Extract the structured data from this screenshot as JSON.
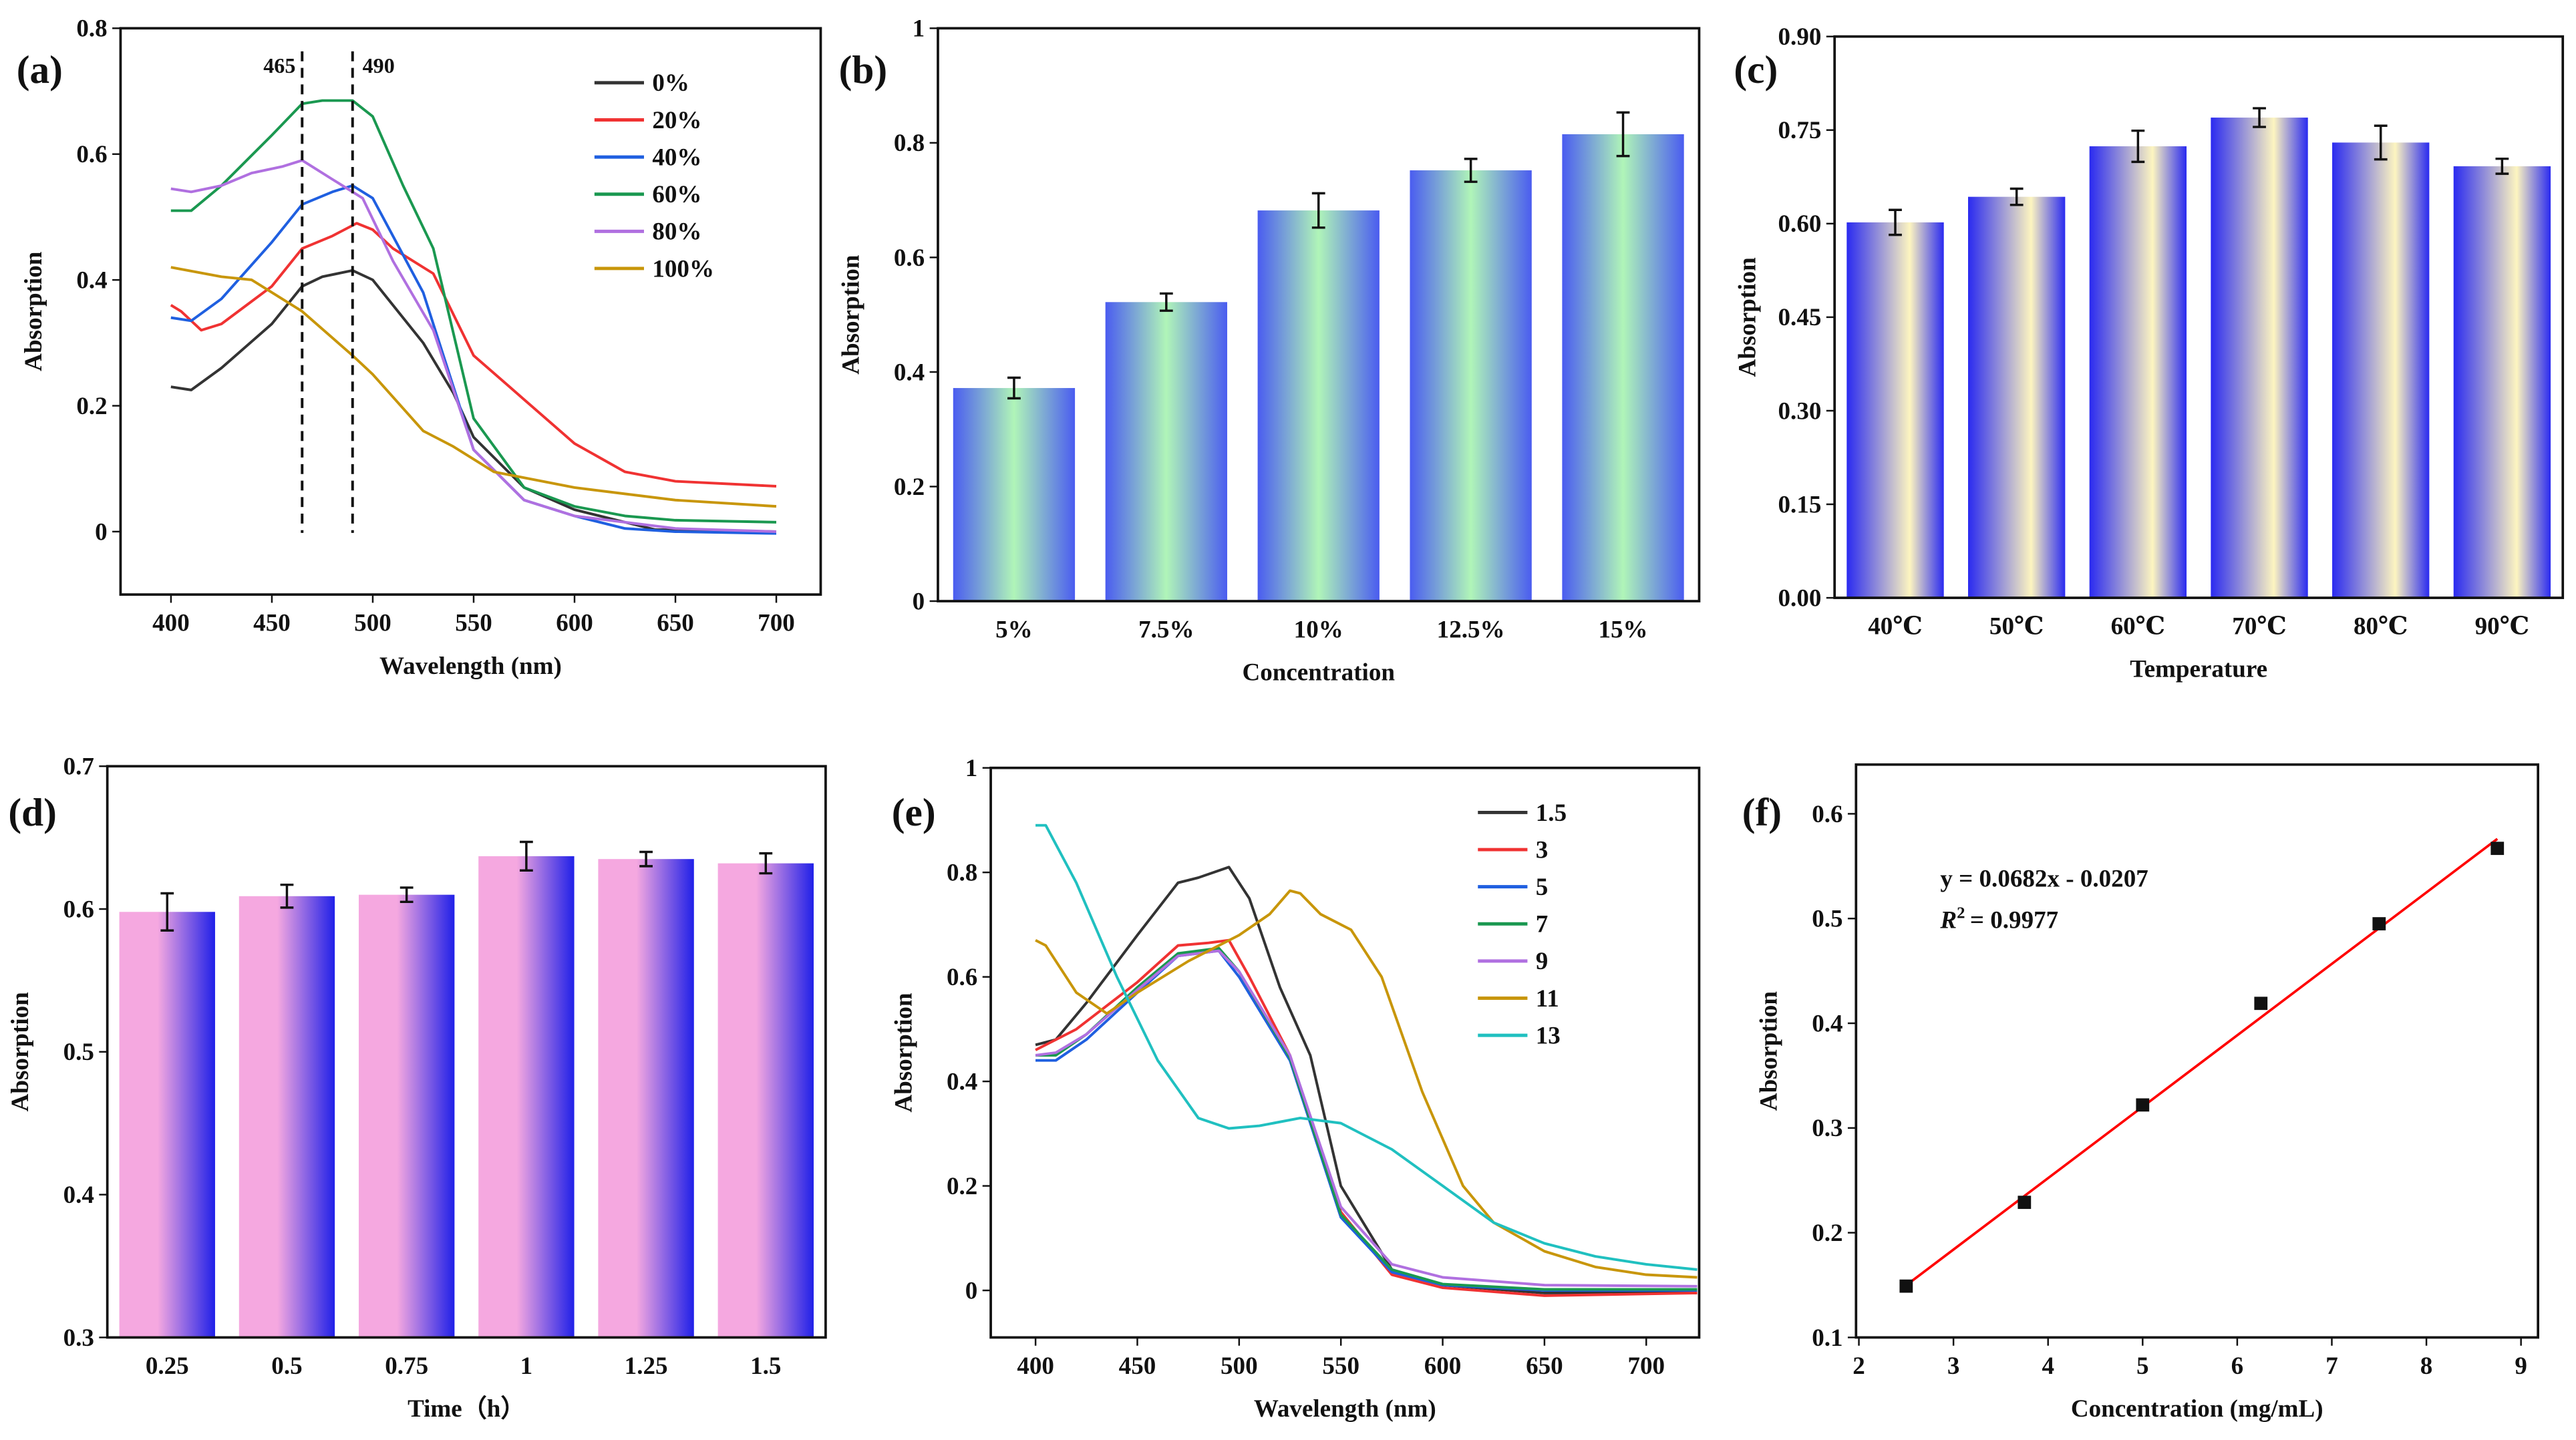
{
  "chart_data": [
    {
      "panel": "(a)",
      "type": "line",
      "xlabel": "Wavelength (nm)",
      "ylabel": "Absorption",
      "xlim": [
        375,
        722
      ],
      "ylim": [
        -0.1,
        0.8
      ],
      "xticks": [
        400,
        450,
        500,
        550,
        600,
        650,
        700
      ],
      "yticks": [
        0.0,
        0.2,
        0.4,
        0.6,
        0.8
      ],
      "legend_position": "top-right",
      "annotations": [
        {
          "text": "465",
          "x": 465
        },
        {
          "text": "490",
          "x": 490
        }
      ],
      "series": [
        {
          "name": "0%",
          "color": "#333333",
          "x": [
            400,
            410,
            425,
            450,
            465,
            475,
            490,
            500,
            525,
            540,
            550,
            575,
            600,
            625,
            640,
            700
          ],
          "y": [
            0.23,
            0.225,
            0.26,
            0.33,
            0.39,
            0.405,
            0.415,
            0.4,
            0.3,
            0.22,
            0.15,
            0.07,
            0.035,
            0.015,
            0.003,
            0.0
          ]
        },
        {
          "name": "20%",
          "color": "#f03232",
          "x": [
            400,
            405,
            415,
            425,
            450,
            465,
            480,
            492,
            500,
            510,
            530,
            550,
            575,
            600,
            625,
            650,
            700
          ],
          "y": [
            0.36,
            0.35,
            0.32,
            0.33,
            0.39,
            0.45,
            0.47,
            0.49,
            0.48,
            0.45,
            0.41,
            0.28,
            0.21,
            0.14,
            0.095,
            0.08,
            0.072
          ]
        },
        {
          "name": "40%",
          "color": "#1f5fe0",
          "x": [
            400,
            410,
            425,
            450,
            465,
            480,
            490,
            500,
            525,
            550,
            575,
            600,
            625,
            650,
            700
          ],
          "y": [
            0.34,
            0.335,
            0.37,
            0.46,
            0.52,
            0.54,
            0.55,
            0.53,
            0.38,
            0.13,
            0.05,
            0.025,
            0.005,
            0.0,
            -0.003
          ]
        },
        {
          "name": "60%",
          "color": "#1a9850",
          "x": [
            400,
            410,
            425,
            450,
            465,
            475,
            490,
            500,
            515,
            530,
            550,
            575,
            600,
            625,
            650,
            700
          ],
          "y": [
            0.51,
            0.51,
            0.55,
            0.63,
            0.68,
            0.685,
            0.685,
            0.66,
            0.55,
            0.45,
            0.18,
            0.07,
            0.04,
            0.025,
            0.018,
            0.015
          ]
        },
        {
          "name": "80%",
          "color": "#b070e0",
          "x": [
            400,
            410,
            425,
            440,
            455,
            465,
            480,
            495,
            510,
            530,
            550,
            575,
            600,
            650,
            700
          ],
          "y": [
            0.545,
            0.54,
            0.55,
            0.57,
            0.58,
            0.59,
            0.56,
            0.53,
            0.43,
            0.32,
            0.13,
            0.05,
            0.025,
            0.005,
            0.0
          ]
        },
        {
          "name": "100%",
          "color": "#c8960a",
          "x": [
            400,
            425,
            440,
            465,
            490,
            500,
            525,
            540,
            560,
            600,
            650,
            700
          ],
          "y": [
            0.42,
            0.405,
            0.4,
            0.35,
            0.28,
            0.25,
            0.16,
            0.135,
            0.095,
            0.07,
            0.05,
            0.04
          ]
        }
      ]
    },
    {
      "panel": "(b)",
      "type": "bar",
      "xlabel": "Concentration",
      "ylabel": "Absorption",
      "ylim": [
        0,
        1.0
      ],
      "yticks": [
        0.0,
        0.2,
        0.4,
        0.6,
        0.8,
        1.0
      ],
      "categories": [
        "5%",
        "7.5%",
        "10%",
        "12.5%",
        "15%"
      ],
      "values": [
        0.372,
        0.522,
        0.682,
        0.752,
        0.815
      ],
      "errors": [
        0.018,
        0.015,
        0.03,
        0.02,
        0.038
      ],
      "gradient": [
        "#4a5cf0",
        "#b0f5b8"
      ]
    },
    {
      "panel": "(c)",
      "type": "bar",
      "xlabel": "Temperature",
      "ylabel": "Absorption",
      "ylim": [
        0,
        0.9
      ],
      "yticks": [
        0.0,
        0.15,
        0.3,
        0.45,
        0.6,
        0.75,
        0.9
      ],
      "ytick_labels": [
        "0.00",
        "0.15",
        "0.30",
        "0.45",
        "0.60",
        "0.75",
        "0.90"
      ],
      "categories": [
        "40℃",
        "50℃",
        "60℃",
        "70℃",
        "80℃",
        "90℃"
      ],
      "values": [
        0.602,
        0.643,
        0.724,
        0.77,
        0.73,
        0.692
      ],
      "errors": [
        0.02,
        0.013,
        0.025,
        0.015,
        0.027,
        0.012
      ],
      "gradient": [
        "#2a2af0",
        "#fdf5c0"
      ]
    },
    {
      "panel": "(d)",
      "type": "bar",
      "xlabel": "Time（h）",
      "ylabel": "Absorption",
      "ylim": [
        0.3,
        0.7
      ],
      "yticks": [
        0.3,
        0.4,
        0.5,
        0.6,
        0.7
      ],
      "categories": [
        "0.25",
        "0.5",
        "0.75",
        "1",
        "1.25",
        "1.5"
      ],
      "values": [
        0.598,
        0.609,
        0.61,
        0.637,
        0.635,
        0.632
      ],
      "errors": [
        0.013,
        0.008,
        0.005,
        0.01,
        0.005,
        0.007
      ],
      "gradient": [
        "#2020e8",
        "#f5a8e0"
      ]
    },
    {
      "panel": "(e)",
      "type": "line",
      "xlabel": "Wavelength (nm)",
      "ylabel": "Absorption",
      "xlim": [
        378,
        726
      ],
      "ylim": [
        -0.09,
        1.0
      ],
      "xticks": [
        400,
        450,
        500,
        550,
        600,
        650,
        700
      ],
      "yticks": [
        0.0,
        0.2,
        0.4,
        0.6,
        0.8,
        1.0
      ],
      "legend_position": "top-right",
      "series": [
        {
          "name": "1.5",
          "color": "#333333",
          "x": [
            400,
            410,
            425,
            450,
            470,
            480,
            495,
            505,
            520,
            535,
            550,
            575,
            600,
            650,
            725
          ],
          "y": [
            0.47,
            0.48,
            0.55,
            0.68,
            0.78,
            0.79,
            0.81,
            0.75,
            0.58,
            0.45,
            0.2,
            0.04,
            0.01,
            -0.005,
            -0.005
          ]
        },
        {
          "name": "3",
          "color": "#f03232",
          "x": [
            400,
            420,
            450,
            470,
            485,
            495,
            505,
            525,
            550,
            575,
            600,
            650,
            725
          ],
          "y": [
            0.46,
            0.5,
            0.59,
            0.66,
            0.665,
            0.67,
            0.6,
            0.45,
            0.15,
            0.03,
            0.005,
            -0.01,
            -0.005
          ]
        },
        {
          "name": "5",
          "color": "#1f5fe0",
          "x": [
            400,
            410,
            425,
            450,
            470,
            490,
            500,
            525,
            550,
            575,
            600,
            650,
            725
          ],
          "y": [
            0.44,
            0.44,
            0.48,
            0.57,
            0.64,
            0.65,
            0.6,
            0.44,
            0.14,
            0.035,
            0.01,
            0.0,
            0.0
          ]
        },
        {
          "name": "7",
          "color": "#1a9850",
          "x": [
            400,
            410,
            425,
            450,
            470,
            490,
            500,
            525,
            550,
            575,
            600,
            650,
            725
          ],
          "y": [
            0.45,
            0.45,
            0.49,
            0.58,
            0.645,
            0.655,
            0.61,
            0.445,
            0.145,
            0.04,
            0.012,
            0.002,
            0.002
          ]
        },
        {
          "name": "9",
          "color": "#b070e0",
          "x": [
            400,
            410,
            425,
            450,
            470,
            490,
            500,
            525,
            550,
            575,
            600,
            650,
            725
          ],
          "y": [
            0.45,
            0.455,
            0.49,
            0.575,
            0.64,
            0.65,
            0.61,
            0.45,
            0.16,
            0.05,
            0.025,
            0.01,
            0.008
          ]
        },
        {
          "name": "11",
          "color": "#c8960a",
          "x": [
            400,
            405,
            420,
            435,
            450,
            475,
            500,
            515,
            525,
            530,
            540,
            555,
            570,
            590,
            610,
            625,
            650,
            675,
            700,
            725
          ],
          "y": [
            0.67,
            0.66,
            0.57,
            0.53,
            0.57,
            0.63,
            0.68,
            0.72,
            0.765,
            0.76,
            0.72,
            0.69,
            0.6,
            0.38,
            0.2,
            0.13,
            0.075,
            0.045,
            0.03,
            0.025
          ]
        },
        {
          "name": "13",
          "color": "#20c0c0",
          "x": [
            400,
            405,
            420,
            440,
            460,
            480,
            495,
            510,
            530,
            550,
            575,
            600,
            625,
            650,
            675,
            700,
            725
          ],
          "y": [
            0.89,
            0.89,
            0.78,
            0.6,
            0.44,
            0.33,
            0.31,
            0.315,
            0.33,
            0.32,
            0.27,
            0.2,
            0.13,
            0.09,
            0.065,
            0.05,
            0.04
          ]
        }
      ]
    },
    {
      "panel": "(f)",
      "type": "scatter",
      "xlabel": "Concentration (mg/mL)",
      "ylabel": "Absorption",
      "xlim": [
        1.97,
        9.18
      ],
      "ylim": [
        0.1,
        0.647
      ],
      "xticks": [
        2,
        3,
        4,
        5,
        6,
        7,
        8,
        9
      ],
      "yticks": [
        0.1,
        0.2,
        0.3,
        0.4,
        0.5,
        0.6
      ],
      "x": [
        2.5,
        3.75,
        5.0,
        6.25,
        7.5,
        8.75
      ],
      "y": [
        0.149,
        0.229,
        0.322,
        0.419,
        0.495,
        0.567
      ],
      "fit": {
        "slope": 0.0682,
        "intercept": -0.0207,
        "color": "#ff0000"
      },
      "equation": "y = 0.0682x - 0.0207",
      "r2_label": "R",
      "r2_value": "= 0.9977"
    }
  ]
}
